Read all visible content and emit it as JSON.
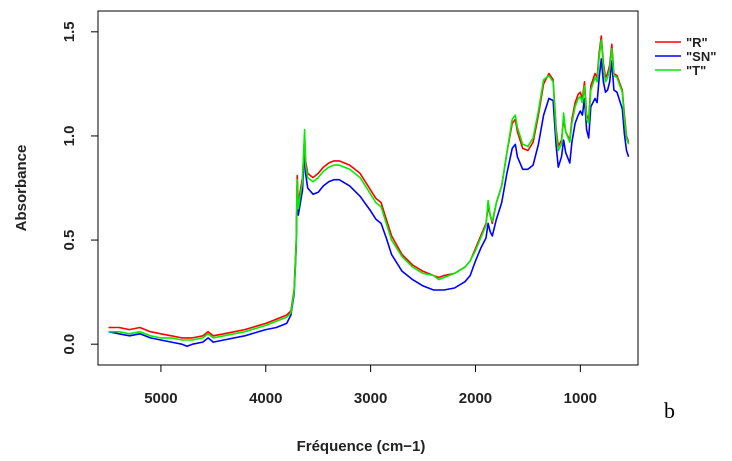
{
  "chart_data": {
    "type": "line",
    "xlabel": "Fréquence (cm−1)",
    "ylabel": "Absorbance",
    "xlim": [
      5600,
      450
    ],
    "ylim": [
      -0.1,
      1.6
    ],
    "x_ticks": [
      5000,
      4000,
      3000,
      2000,
      1000
    ],
    "y_ticks": [
      0.0,
      0.5,
      1.0,
      1.5
    ],
    "x_tick_labels": [
      "5000",
      "4000",
      "3000",
      "2000",
      "1000"
    ],
    "y_tick_labels": [
      "0.0",
      "0.5",
      "1.0",
      "1.5"
    ],
    "grid": false,
    "legend_position": "top-right",
    "panel_label": "b",
    "series": [
      {
        "name": "\"R\"",
        "color": "#ff0000",
        "points": [
          [
            5500,
            0.08
          ],
          [
            5400,
            0.08
          ],
          [
            5300,
            0.07
          ],
          [
            5200,
            0.08
          ],
          [
            5100,
            0.06
          ],
          [
            5000,
            0.05
          ],
          [
            4900,
            0.04
          ],
          [
            4800,
            0.03
          ],
          [
            4700,
            0.03
          ],
          [
            4600,
            0.04
          ],
          [
            4550,
            0.06
          ],
          [
            4500,
            0.04
          ],
          [
            4400,
            0.05
          ],
          [
            4200,
            0.07
          ],
          [
            4000,
            0.1
          ],
          [
            3900,
            0.12
          ],
          [
            3800,
            0.14
          ],
          [
            3760,
            0.16
          ],
          [
            3730,
            0.26
          ],
          [
            3710,
            0.5
          ],
          [
            3700,
            0.81
          ],
          [
            3690,
            0.68
          ],
          [
            3670,
            0.74
          ],
          [
            3650,
            0.8
          ],
          [
            3630,
            1.0
          ],
          [
            3620,
            0.88
          ],
          [
            3600,
            0.82
          ],
          [
            3550,
            0.8
          ],
          [
            3500,
            0.82
          ],
          [
            3450,
            0.85
          ],
          [
            3400,
            0.87
          ],
          [
            3350,
            0.88
          ],
          [
            3300,
            0.88
          ],
          [
            3200,
            0.86
          ],
          [
            3100,
            0.82
          ],
          [
            3000,
            0.74
          ],
          [
            2950,
            0.7
          ],
          [
            2900,
            0.68
          ],
          [
            2850,
            0.6
          ],
          [
            2800,
            0.52
          ],
          [
            2700,
            0.43
          ],
          [
            2600,
            0.38
          ],
          [
            2500,
            0.35
          ],
          [
            2400,
            0.33
          ],
          [
            2350,
            0.32
          ],
          [
            2300,
            0.33
          ],
          [
            2200,
            0.34
          ],
          [
            2100,
            0.37
          ],
          [
            2050,
            0.4
          ],
          [
            2000,
            0.46
          ],
          [
            1950,
            0.52
          ],
          [
            1900,
            0.58
          ],
          [
            1880,
            0.66
          ],
          [
            1860,
            0.62
          ],
          [
            1840,
            0.58
          ],
          [
            1800,
            0.68
          ],
          [
            1750,
            0.76
          ],
          [
            1700,
            0.92
          ],
          [
            1650,
            1.06
          ],
          [
            1620,
            1.08
          ],
          [
            1600,
            1.02
          ],
          [
            1550,
            0.94
          ],
          [
            1500,
            0.93
          ],
          [
            1450,
            0.97
          ],
          [
            1400,
            1.1
          ],
          [
            1350,
            1.25
          ],
          [
            1300,
            1.3
          ],
          [
            1260,
            1.27
          ],
          [
            1230,
            1.03
          ],
          [
            1210,
            0.95
          ],
          [
            1180,
            0.98
          ],
          [
            1160,
            1.08
          ],
          [
            1140,
            1.02
          ],
          [
            1100,
            0.98
          ],
          [
            1080,
            1.08
          ],
          [
            1050,
            1.16
          ],
          [
            1020,
            1.2
          ],
          [
            1000,
            1.21
          ],
          [
            980,
            1.18
          ],
          [
            960,
            1.26
          ],
          [
            940,
            1.1
          ],
          [
            920,
            1.08
          ],
          [
            900,
            1.24
          ],
          [
            860,
            1.3
          ],
          [
            840,
            1.28
          ],
          [
            820,
            1.4
          ],
          [
            800,
            1.48
          ],
          [
            780,
            1.35
          ],
          [
            760,
            1.28
          ],
          [
            740,
            1.3
          ],
          [
            720,
            1.34
          ],
          [
            700,
            1.44
          ],
          [
            680,
            1.3
          ],
          [
            650,
            1.29
          ],
          [
            600,
            1.22
          ],
          [
            580,
            1.1
          ],
          [
            560,
            1.0
          ],
          [
            540,
            0.97
          ]
        ]
      },
      {
        "name": "\"SN\"",
        "color": "#0000ff",
        "points": [
          [
            5500,
            0.06
          ],
          [
            5400,
            0.05
          ],
          [
            5300,
            0.04
          ],
          [
            5200,
            0.05
          ],
          [
            5100,
            0.03
          ],
          [
            5000,
            0.02
          ],
          [
            4900,
            0.01
          ],
          [
            4800,
            0.0
          ],
          [
            4750,
            -0.01
          ],
          [
            4700,
            0.0
          ],
          [
            4600,
            0.01
          ],
          [
            4550,
            0.03
          ],
          [
            4500,
            0.01
          ],
          [
            4400,
            0.02
          ],
          [
            4200,
            0.04
          ],
          [
            4000,
            0.07
          ],
          [
            3900,
            0.08
          ],
          [
            3800,
            0.1
          ],
          [
            3760,
            0.14
          ],
          [
            3730,
            0.24
          ],
          [
            3710,
            0.46
          ],
          [
            3700,
            0.76
          ],
          [
            3690,
            0.62
          ],
          [
            3670,
            0.68
          ],
          [
            3650,
            0.74
          ],
          [
            3630,
            0.94
          ],
          [
            3620,
            0.82
          ],
          [
            3600,
            0.75
          ],
          [
            3550,
            0.72
          ],
          [
            3500,
            0.73
          ],
          [
            3450,
            0.76
          ],
          [
            3400,
            0.78
          ],
          [
            3350,
            0.79
          ],
          [
            3300,
            0.79
          ],
          [
            3200,
            0.76
          ],
          [
            3100,
            0.71
          ],
          [
            3000,
            0.64
          ],
          [
            2950,
            0.6
          ],
          [
            2900,
            0.58
          ],
          [
            2850,
            0.51
          ],
          [
            2800,
            0.43
          ],
          [
            2700,
            0.35
          ],
          [
            2600,
            0.31
          ],
          [
            2500,
            0.28
          ],
          [
            2400,
            0.26
          ],
          [
            2350,
            0.26
          ],
          [
            2300,
            0.26
          ],
          [
            2200,
            0.27
          ],
          [
            2100,
            0.3
          ],
          [
            2050,
            0.33
          ],
          [
            2000,
            0.4
          ],
          [
            1950,
            0.46
          ],
          [
            1900,
            0.51
          ],
          [
            1880,
            0.58
          ],
          [
            1860,
            0.54
          ],
          [
            1840,
            0.52
          ],
          [
            1800,
            0.6
          ],
          [
            1750,
            0.68
          ],
          [
            1700,
            0.82
          ],
          [
            1650,
            0.94
          ],
          [
            1620,
            0.96
          ],
          [
            1600,
            0.9
          ],
          [
            1550,
            0.84
          ],
          [
            1500,
            0.84
          ],
          [
            1450,
            0.86
          ],
          [
            1400,
            0.96
          ],
          [
            1350,
            1.1
          ],
          [
            1300,
            1.18
          ],
          [
            1260,
            1.17
          ],
          [
            1230,
            0.95
          ],
          [
            1210,
            0.85
          ],
          [
            1180,
            0.9
          ],
          [
            1160,
            0.98
          ],
          [
            1140,
            0.92
          ],
          [
            1100,
            0.87
          ],
          [
            1080,
            0.97
          ],
          [
            1050,
            1.06
          ],
          [
            1020,
            1.1
          ],
          [
            1000,
            1.12
          ],
          [
            980,
            1.1
          ],
          [
            960,
            1.18
          ],
          [
            940,
            1.03
          ],
          [
            920,
            0.99
          ],
          [
            900,
            1.14
          ],
          [
            860,
            1.18
          ],
          [
            840,
            1.16
          ],
          [
            820,
            1.28
          ],
          [
            800,
            1.37
          ],
          [
            780,
            1.26
          ],
          [
            760,
            1.21
          ],
          [
            740,
            1.22
          ],
          [
            720,
            1.26
          ],
          [
            700,
            1.36
          ],
          [
            680,
            1.22
          ],
          [
            650,
            1.21
          ],
          [
            600,
            1.13
          ],
          [
            580,
            1.01
          ],
          [
            560,
            0.93
          ],
          [
            540,
            0.9
          ]
        ]
      },
      {
        "name": "\"T\"",
        "color": "#00ee00",
        "points": [
          [
            5500,
            0.06
          ],
          [
            5400,
            0.06
          ],
          [
            5300,
            0.05
          ],
          [
            5200,
            0.06
          ],
          [
            5100,
            0.04
          ],
          [
            5000,
            0.03
          ],
          [
            4900,
            0.03
          ],
          [
            4800,
            0.02
          ],
          [
            4700,
            0.02
          ],
          [
            4600,
            0.03
          ],
          [
            4550,
            0.05
          ],
          [
            4500,
            0.03
          ],
          [
            4400,
            0.04
          ],
          [
            4200,
            0.06
          ],
          [
            4000,
            0.09
          ],
          [
            3900,
            0.11
          ],
          [
            3800,
            0.13
          ],
          [
            3760,
            0.15
          ],
          [
            3730,
            0.25
          ],
          [
            3710,
            0.48
          ],
          [
            3700,
            0.79
          ],
          [
            3690,
            0.65
          ],
          [
            3670,
            0.72
          ],
          [
            3650,
            0.78
          ],
          [
            3630,
            1.03
          ],
          [
            3620,
            0.86
          ],
          [
            3600,
            0.8
          ],
          [
            3550,
            0.78
          ],
          [
            3500,
            0.8
          ],
          [
            3450,
            0.83
          ],
          [
            3400,
            0.85
          ],
          [
            3350,
            0.86
          ],
          [
            3300,
            0.86
          ],
          [
            3200,
            0.84
          ],
          [
            3100,
            0.8
          ],
          [
            3000,
            0.72
          ],
          [
            2950,
            0.68
          ],
          [
            2900,
            0.66
          ],
          [
            2850,
            0.58
          ],
          [
            2800,
            0.5
          ],
          [
            2700,
            0.42
          ],
          [
            2600,
            0.37
          ],
          [
            2500,
            0.34
          ],
          [
            2400,
            0.33
          ],
          [
            2350,
            0.31
          ],
          [
            2300,
            0.32
          ],
          [
            2200,
            0.34
          ],
          [
            2100,
            0.37
          ],
          [
            2050,
            0.4
          ],
          [
            2000,
            0.45
          ],
          [
            1950,
            0.51
          ],
          [
            1900,
            0.57
          ],
          [
            1880,
            0.69
          ],
          [
            1860,
            0.62
          ],
          [
            1840,
            0.59
          ],
          [
            1800,
            0.68
          ],
          [
            1750,
            0.76
          ],
          [
            1700,
            0.92
          ],
          [
            1650,
            1.08
          ],
          [
            1620,
            1.1
          ],
          [
            1600,
            1.04
          ],
          [
            1550,
            0.96
          ],
          [
            1500,
            0.95
          ],
          [
            1450,
            0.99
          ],
          [
            1400,
            1.12
          ],
          [
            1350,
            1.27
          ],
          [
            1300,
            1.29
          ],
          [
            1260,
            1.26
          ],
          [
            1230,
            1.01
          ],
          [
            1210,
            0.93
          ],
          [
            1180,
            0.96
          ],
          [
            1160,
            1.11
          ],
          [
            1140,
            1.02
          ],
          [
            1100,
            0.97
          ],
          [
            1080,
            1.06
          ],
          [
            1050,
            1.14
          ],
          [
            1020,
            1.18
          ],
          [
            1000,
            1.19
          ],
          [
            980,
            1.16
          ],
          [
            960,
            1.24
          ],
          [
            940,
            1.08
          ],
          [
            920,
            1.06
          ],
          [
            900,
            1.22
          ],
          [
            860,
            1.28
          ],
          [
            840,
            1.26
          ],
          [
            820,
            1.38
          ],
          [
            800,
            1.46
          ],
          [
            780,
            1.33
          ],
          [
            760,
            1.26
          ],
          [
            740,
            1.28
          ],
          [
            720,
            1.32
          ],
          [
            700,
            1.42
          ],
          [
            680,
            1.29
          ],
          [
            650,
            1.28
          ],
          [
            600,
            1.21
          ],
          [
            580,
            1.08
          ],
          [
            560,
            0.99
          ],
          [
            540,
            0.96
          ]
        ]
      }
    ]
  }
}
